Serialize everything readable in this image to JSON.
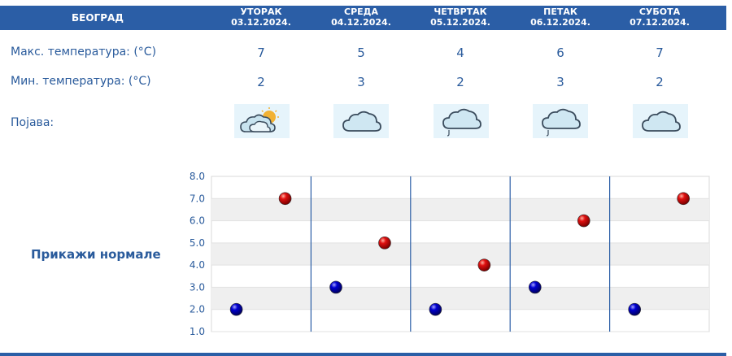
{
  "header": {
    "city": "БЕОГРАД"
  },
  "days": [
    {
      "name": "УТОРАК",
      "date": "03.12.2024.",
      "max": "7",
      "min": "2",
      "icon": "partly-cloudy-sun-icon"
    },
    {
      "name": "СРЕДА",
      "date": "04.12.2024.",
      "max": "5",
      "min": "3",
      "icon": "cloudy-icon"
    },
    {
      "name": "ЧЕТВРТАК",
      "date": "05.12.2024.",
      "max": "4",
      "min": "2",
      "icon": "cloud-rain-icon"
    },
    {
      "name": "ПЕТАК",
      "date": "06.12.2024.",
      "max": "6",
      "min": "3",
      "icon": "cloud-rain-icon"
    },
    {
      "name": "СУБОТА",
      "date": "07.12.2024.",
      "max": "7",
      "min": "2",
      "icon": "cloudy-icon"
    }
  ],
  "labels": {
    "max_temp": "Макс. температура: (°C)",
    "min_temp": "Мин. температура: (°C)",
    "phenomenon": "Појава:"
  },
  "normals_button": "Прикажи нормале",
  "colors": {
    "header": "#2b5ea6",
    "text": "#2a5b9c",
    "max_marker": "#cc0000",
    "min_marker": "#0000b4"
  },
  "chart_data": {
    "type": "scatter",
    "ylim": [
      1.0,
      8.0
    ],
    "yticks": [
      "8.0",
      "7.0",
      "6.0",
      "5.0",
      "4.0",
      "3.0",
      "2.0",
      "1.0"
    ],
    "categories": [
      "03.12.2024.",
      "04.12.2024.",
      "05.12.2024.",
      "06.12.2024.",
      "07.12.2024."
    ],
    "series": [
      {
        "values": [
          7,
          5,
          4,
          6,
          7
        ],
        "color": "#cc0000"
      },
      {
        "values": [
          2,
          3,
          2,
          3,
          2
        ],
        "color": "#0000b4"
      }
    ],
    "grid": true
  }
}
